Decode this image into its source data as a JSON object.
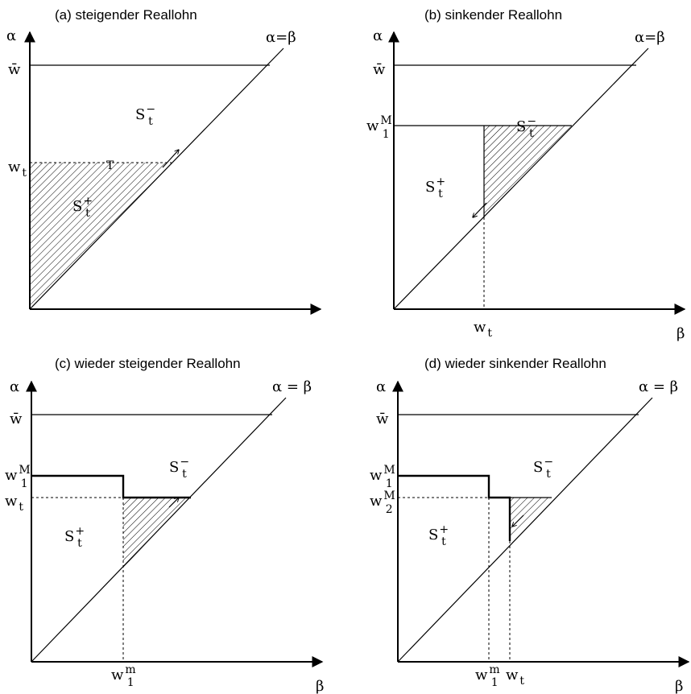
{
  "panels": [
    {
      "title": "(a) steigender Reallohn",
      "y_axis": "α",
      "x_axis": "",
      "diagonal": "α=β",
      "wbar": "w̄",
      "levels": [
        {
          "base": "w",
          "sub": "t",
          "sup": ""
        }
      ],
      "ticks_x": [],
      "regions": [
        {
          "base": "S",
          "sub": "t",
          "sup": "−"
        },
        {
          "base": "S",
          "sub": "t",
          "sup": "+"
        }
      ],
      "marks": [
        "T"
      ]
    },
    {
      "title": "(b) sinkender Reallohn",
      "y_axis": "α",
      "x_axis": "β",
      "diagonal": "α=β",
      "wbar": "w̄",
      "levels": [
        {
          "base": "w",
          "sub": "1",
          "sup": "M"
        }
      ],
      "ticks_x": [
        {
          "base": "w",
          "sub": "t",
          "sup": ""
        }
      ],
      "regions": [
        {
          "base": "S",
          "sub": "t",
          "sup": "−"
        },
        {
          "base": "S",
          "sub": "t",
          "sup": "+"
        }
      ],
      "marks": []
    },
    {
      "title": "(c) wieder steigender Reallohn",
      "y_axis": "α",
      "x_axis": "β",
      "diagonal": "α = β",
      "wbar": "w̄",
      "levels": [
        {
          "base": "w",
          "sub": "1",
          "sup": "M"
        },
        {
          "base": "w",
          "sub": "t",
          "sup": ""
        }
      ],
      "ticks_x": [
        {
          "base": "w",
          "sub": "1",
          "sup": "m"
        }
      ],
      "regions": [
        {
          "base": "S",
          "sub": "t",
          "sup": "−"
        },
        {
          "base": "S",
          "sub": "t",
          "sup": "+"
        }
      ],
      "marks": []
    },
    {
      "title": "(d) wieder sinkender Reallohn",
      "y_axis": "α",
      "x_axis": "β",
      "diagonal": "α = β",
      "wbar": "w̄",
      "levels": [
        {
          "base": "w",
          "sub": "1",
          "sup": "M"
        },
        {
          "base": "w",
          "sub": "2",
          "sup": "M"
        }
      ],
      "ticks_x": [
        {
          "base": "w",
          "sub": "1",
          "sup": "m"
        },
        {
          "base": "w",
          "sub": "t",
          "sup": ""
        }
      ],
      "regions": [
        {
          "base": "S",
          "sub": "t",
          "sup": "−"
        },
        {
          "base": "S",
          "sub": "t",
          "sup": "+"
        }
      ],
      "marks": []
    }
  ]
}
